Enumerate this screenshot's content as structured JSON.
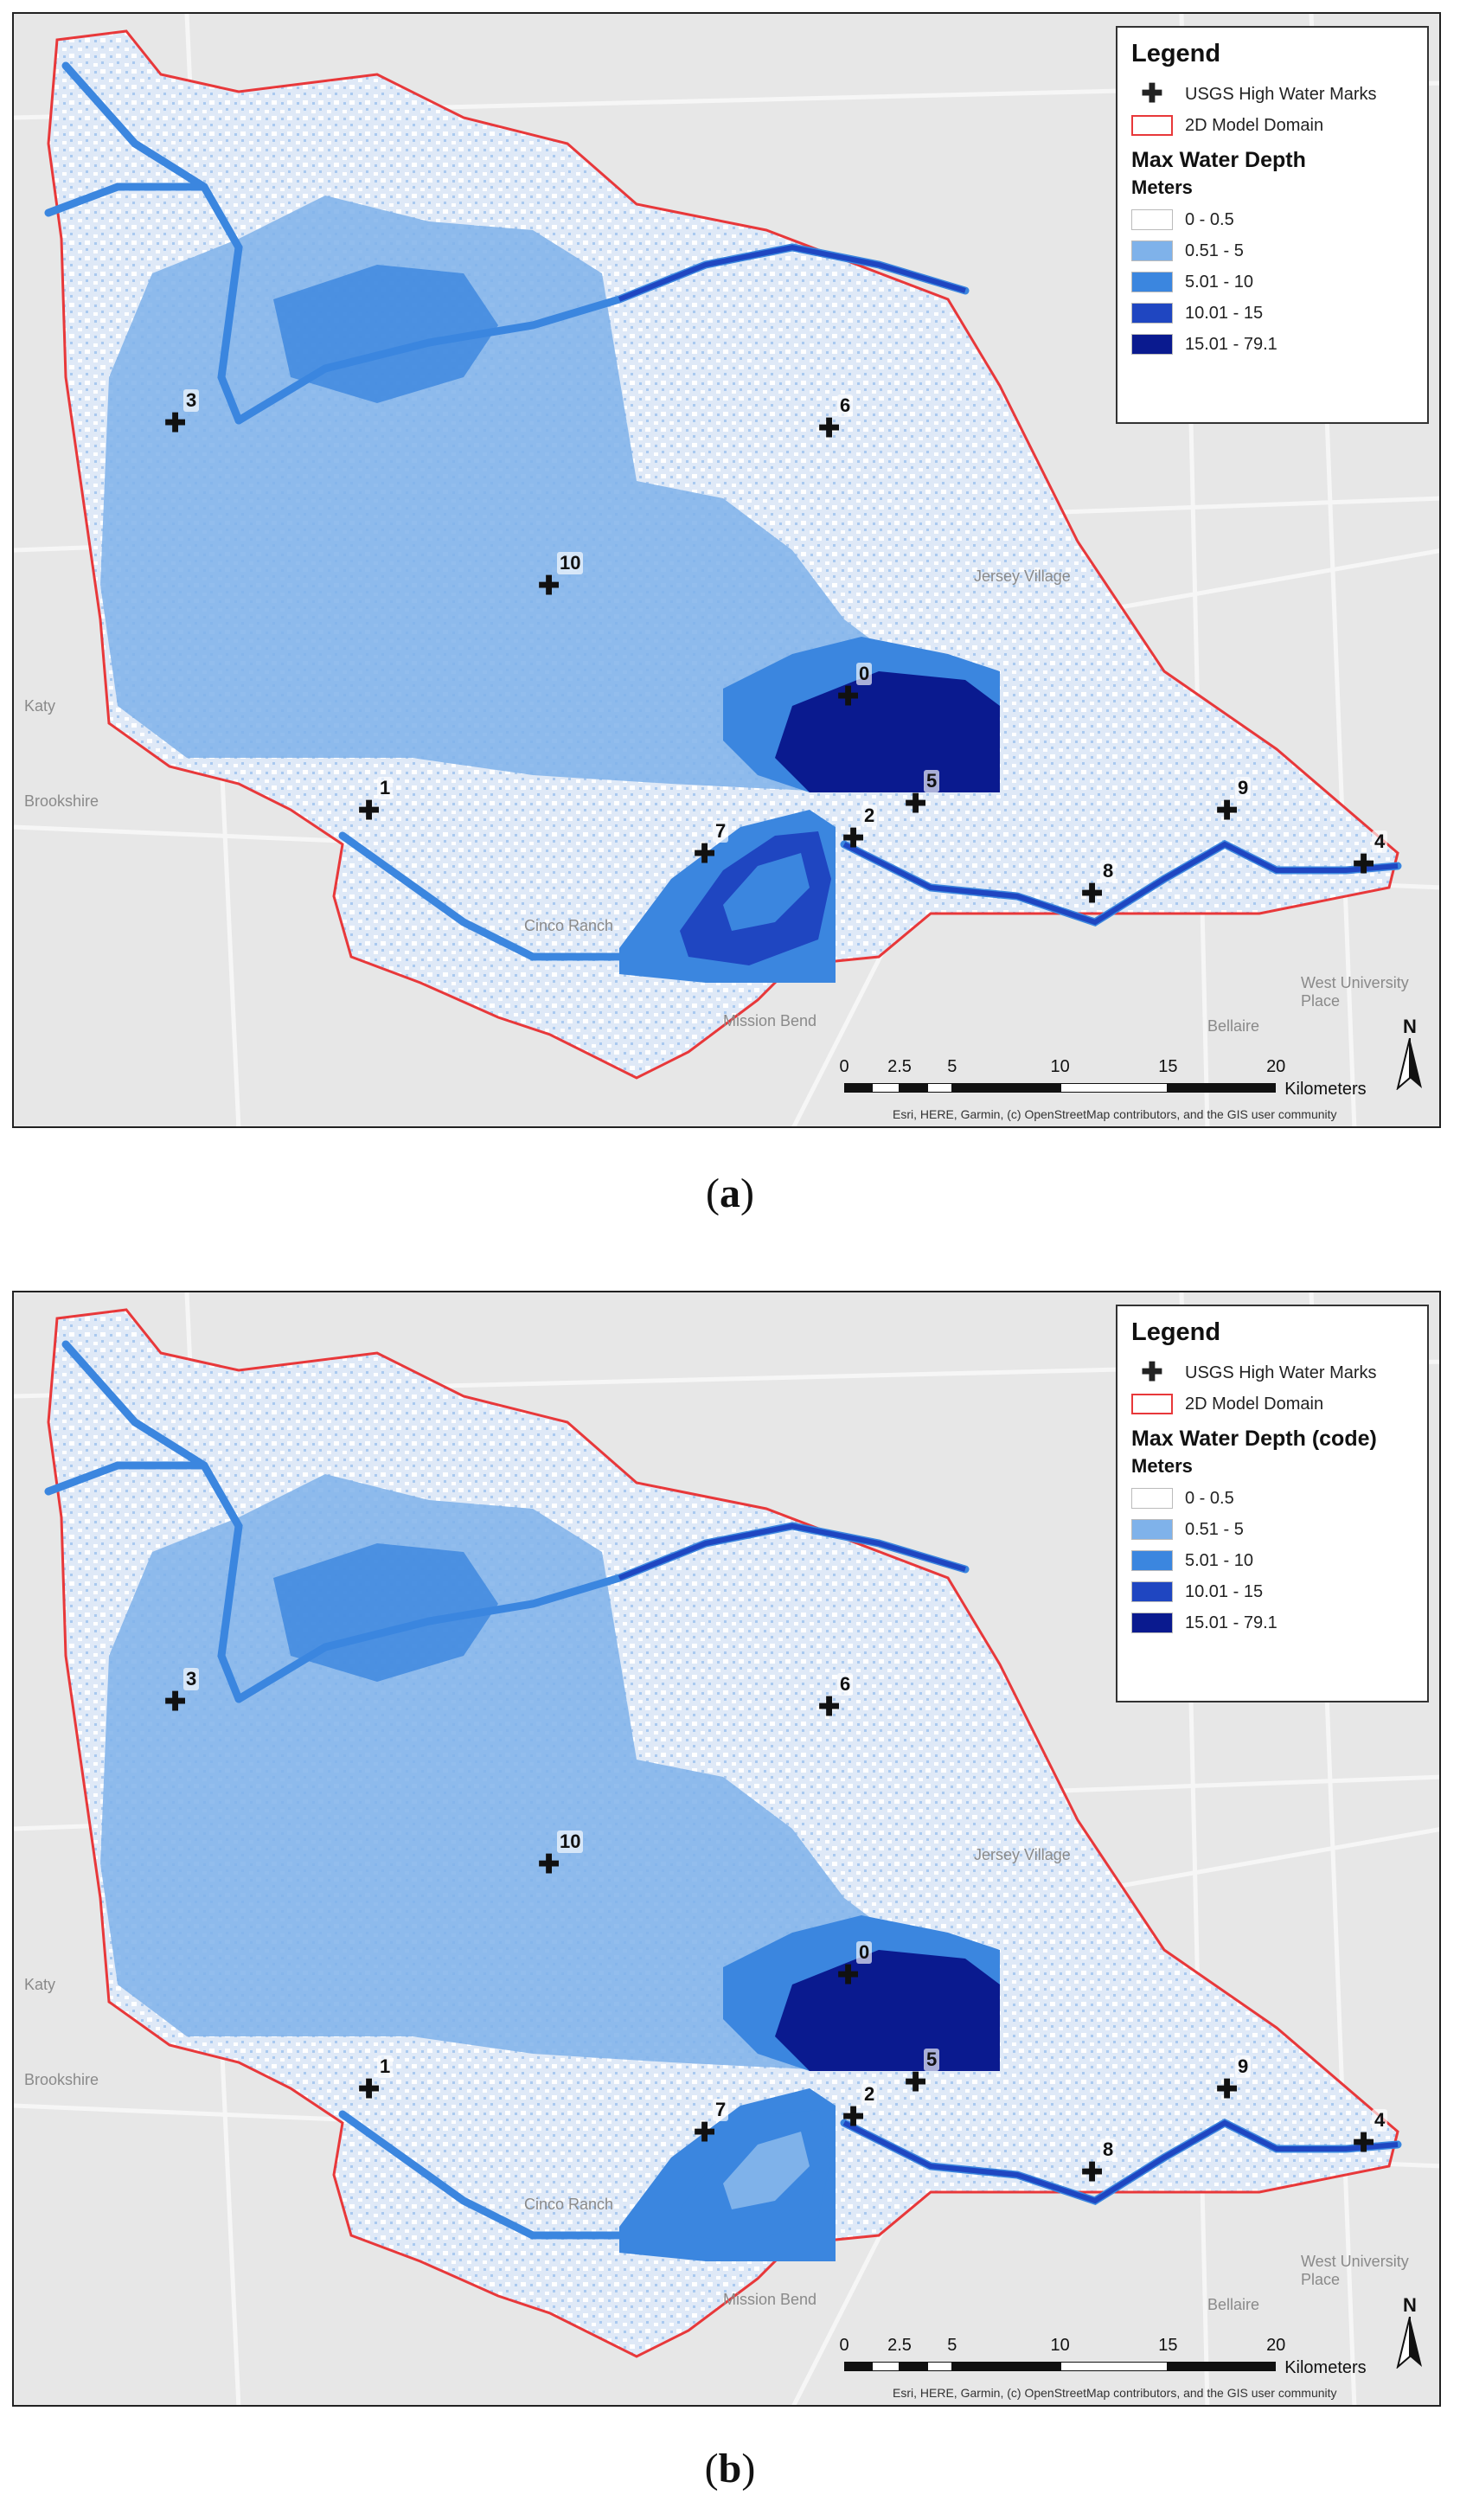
{
  "panels": [
    {
      "id": "a",
      "caption_label": "a",
      "legend": {
        "title": "Legend",
        "points_label": "USGS High Water Marks",
        "domain_label": "2D Model Domain",
        "depth_title": "Max Water Depth",
        "units": "Meters",
        "classes": [
          "0 - 0.5",
          "0.51 - 5",
          "5.01 - 10",
          "10.01 - 15",
          "15.01 - 79.1"
        ]
      },
      "reservoir7_variant": "deep"
    },
    {
      "id": "b",
      "caption_label": "b",
      "legend": {
        "title": "Legend",
        "points_label": "USGS High Water Marks",
        "domain_label": "2D Model Domain",
        "depth_title": "Max Water Depth (code)",
        "units": "Meters",
        "classes": [
          "0 - 0.5",
          "0.51 - 5",
          "5.01 - 10",
          "10.01 - 15",
          "15.01 - 79.1"
        ]
      },
      "reservoir7_variant": "shallow"
    }
  ],
  "class_colors": [
    "#ffffff",
    "#7fb2ea",
    "#3b86df",
    "#1f46c1",
    "#0a1a8f"
  ],
  "domain_outline_color": "#e8383a",
  "high_water_marks": [
    "0",
    "1",
    "2",
    "3",
    "4",
    "5",
    "6",
    "7",
    "8",
    "9",
    "10"
  ],
  "place_names": [
    "Jersey Village",
    "West University Place",
    "Bellaire",
    "Mission Bend",
    "Cinco Ranch",
    "Brookshire",
    "Katy"
  ],
  "scale_bar": {
    "ticks": [
      "0",
      "2.5",
      "5",
      "10",
      "15",
      "20"
    ],
    "unit": "Kilometers"
  },
  "north_label": "N",
  "credit": "Esri, HERE, Garmin, (c) OpenStreetMap contributors, and the GIS user community",
  "caption_open": "(",
  "caption_close": ")"
}
